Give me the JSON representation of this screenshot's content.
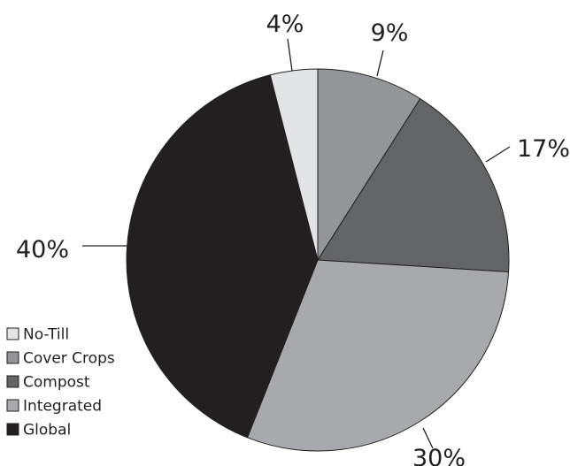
{
  "chart_data": {
    "type": "pie",
    "slices": [
      {
        "label": "No-Till",
        "value": 4,
        "display": "4%",
        "color": "#e3e4e5"
      },
      {
        "label": "Cover Crops",
        "value": 9,
        "display": "9%",
        "color": "#939598"
      },
      {
        "label": "Compost",
        "value": 17,
        "display": "17%",
        "color": "#636466"
      },
      {
        "label": "Integrated",
        "value": 30,
        "display": "30%",
        "color": "#a7a9ac"
      },
      {
        "label": "Global",
        "value": 40,
        "display": "40%",
        "color": "#231f20"
      }
    ],
    "order_drawn": [
      "Cover Crops",
      "Compost",
      "Integrated",
      "Global",
      "No-Till"
    ],
    "start": "12 o'clock",
    "direction": "clockwise",
    "legend_position": "bottom-left",
    "outline_color": "#231f20"
  }
}
